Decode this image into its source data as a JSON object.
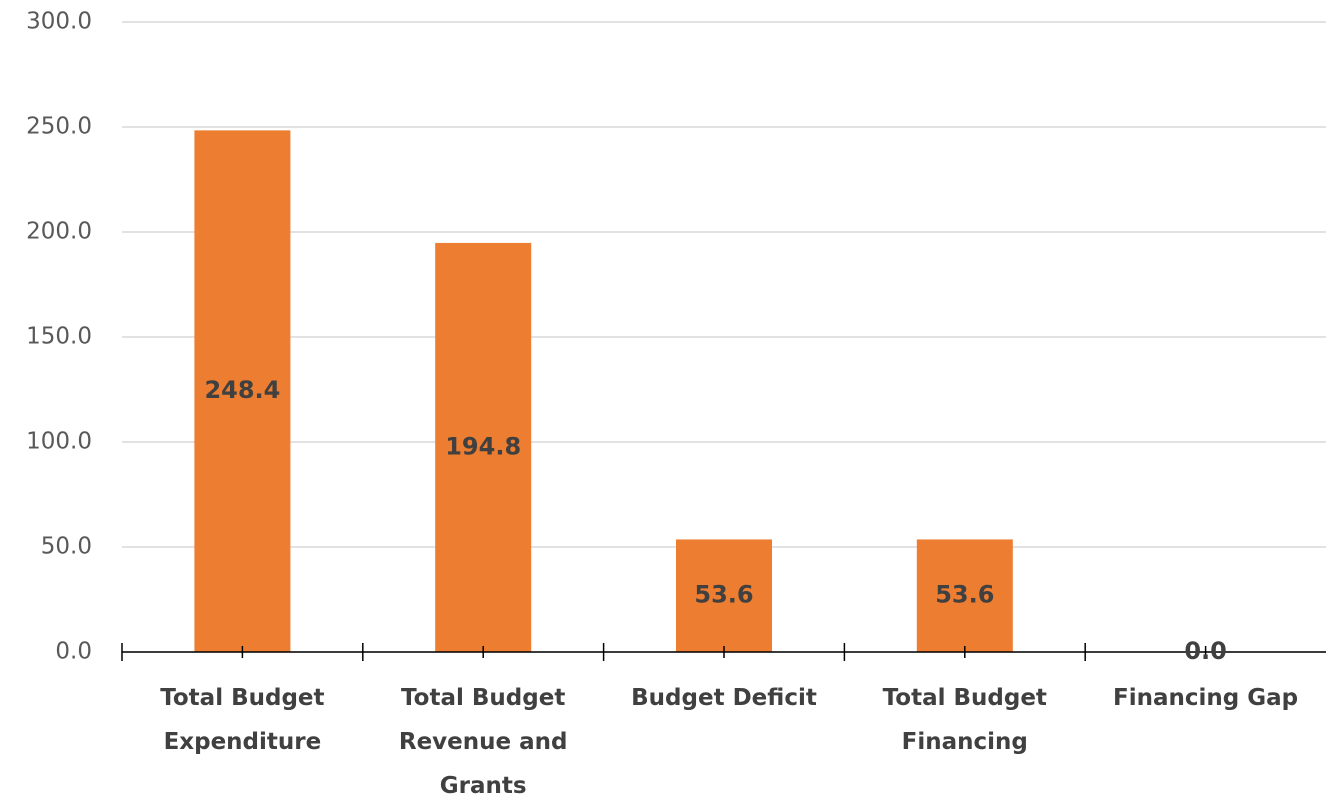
{
  "chart_data": {
    "type": "bar",
    "categories": [
      "Total Budget Expenditure",
      "Total Budget Revenue and Grants",
      "Budget Deficit",
      "Total Budget Financing",
      "Financing Gap"
    ],
    "values": [
      248.4,
      194.8,
      53.6,
      53.6,
      0
    ],
    "value_labels": [
      "248.4",
      "194.8",
      "53.6",
      "53.6",
      "0.0"
    ],
    "color": "#ed7d31",
    "ylim": [
      0,
      300
    ],
    "yticks": [
      {
        "value": 0,
        "label": "0.0"
      },
      {
        "value": 50,
        "label": "50.0"
      },
      {
        "value": 100,
        "label": "100.0"
      },
      {
        "value": 150,
        "label": "150.0"
      },
      {
        "value": 200,
        "label": "200.0"
      },
      {
        "value": 250,
        "label": "250.0"
      },
      {
        "value": 300,
        "label": "300.0"
      }
    ],
    "grid": true
  }
}
